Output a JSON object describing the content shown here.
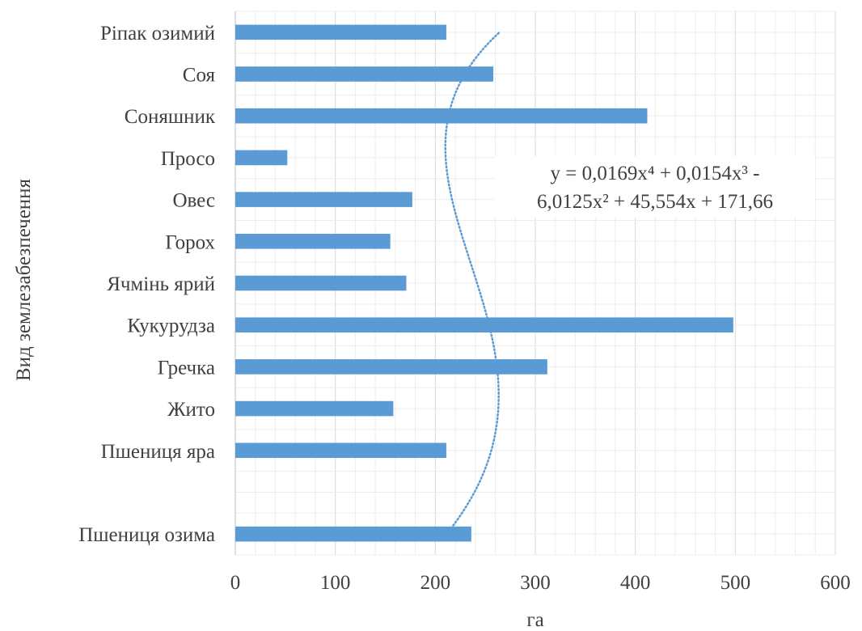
{
  "chart_data": {
    "type": "bar",
    "orientation": "horizontal",
    "categories": [
      "Пшениця озима",
      "",
      "Пшениця яра",
      "Жито",
      "Гречка",
      "Кукурудза",
      "Ячмінь ярий",
      "Горох",
      "Овес",
      "Просо",
      "Соняшник",
      "Соя",
      "Ріпак озимий"
    ],
    "values": [
      236,
      null,
      211,
      158,
      312,
      498,
      171,
      155,
      177,
      52,
      412,
      258,
      211
    ],
    "xlabel": "га",
    "ylabel": "Вид землезабезпечення",
    "xlim": [
      0,
      600
    ],
    "xticks": [
      "0",
      "100",
      "200",
      "300",
      "400",
      "500",
      "600"
    ],
    "grid": true,
    "bar_color": "#5B9BD5",
    "trendline": {
      "type": "polynomial",
      "order": 4,
      "style": "dotted",
      "color": "#5B9BD5",
      "equation_lines": [
        "y = 0,0169x⁴ + 0,0154x³ -",
        "6,0125x² + 45,554x + 171,66"
      ],
      "coefficients": [
        0.0169,
        0.0154,
        -6.0125,
        45.554,
        171.66
      ]
    }
  }
}
